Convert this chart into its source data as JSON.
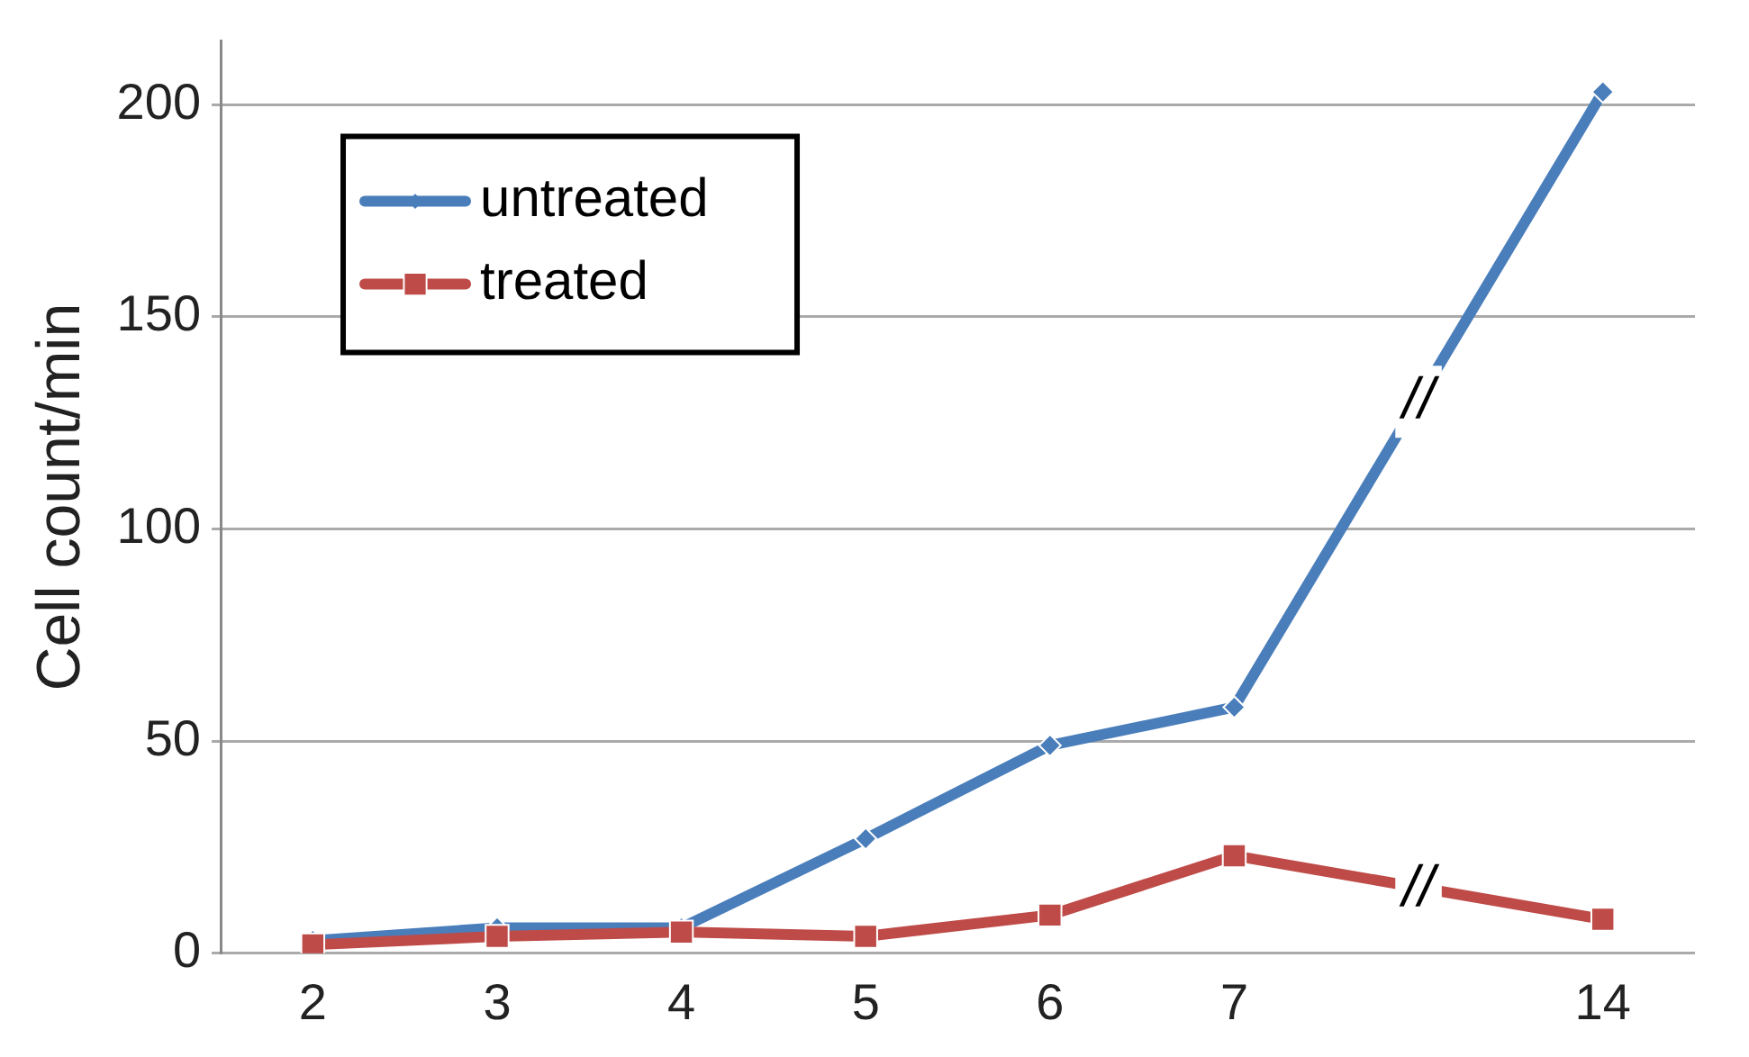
{
  "chart_data": {
    "type": "line",
    "ylabel": "Cell count/min",
    "categories": [
      "2",
      "3",
      "4",
      "5",
      "6",
      "7",
      null,
      "14"
    ],
    "series": [
      {
        "name": "untreated",
        "color": "#4a7ebb",
        "marker": "diamond",
        "values": [
          3,
          6,
          6,
          27,
          49,
          58,
          null,
          203
        ]
      },
      {
        "name": "treated",
        "color": "#be4b48",
        "marker": "square",
        "values": [
          2,
          4,
          5,
          4,
          9,
          23,
          null,
          8
        ]
      }
    ],
    "ylim": [
      0,
      215
    ],
    "yticks": [
      0,
      50,
      100,
      150,
      200
    ],
    "grid": "y",
    "legend": "top left",
    "annotations": [
      {
        "text": "//",
        "y": 130
      },
      {
        "text": "//",
        "y": 15
      }
    ]
  }
}
